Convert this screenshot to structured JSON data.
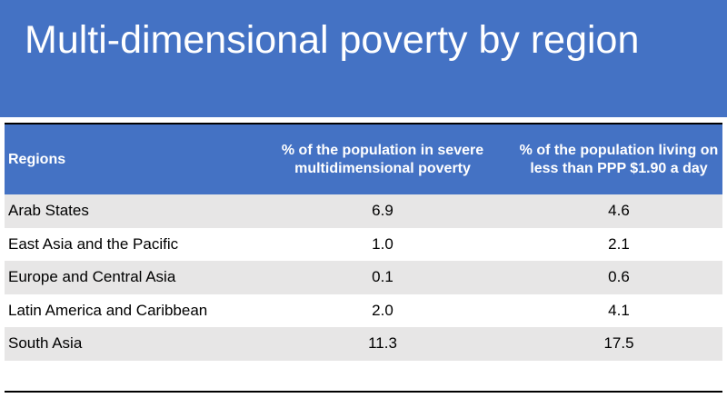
{
  "slide": {
    "title": "Multi-dimensional poverty by region"
  },
  "table": {
    "headers": [
      "Regions",
      "% of the population in severe multidimensional poverty",
      "% of the population living on less than PPP $1.90 a day"
    ],
    "rows": [
      [
        "Arab States",
        "6.9",
        "4.6"
      ],
      [
        "East Asia and the Pacific",
        "1.0",
        "2.1"
      ],
      [
        "Europe and Central Asia",
        "0.1",
        "0.6"
      ],
      [
        "Latin America and Caribbean",
        "2.0",
        "4.1"
      ],
      [
        "South Asia",
        "11.3",
        "17.5"
      ]
    ]
  },
  "colors": {
    "accent_blue": "#4472c4",
    "row_shade": "#e7e6e6",
    "rule": "#000000"
  }
}
